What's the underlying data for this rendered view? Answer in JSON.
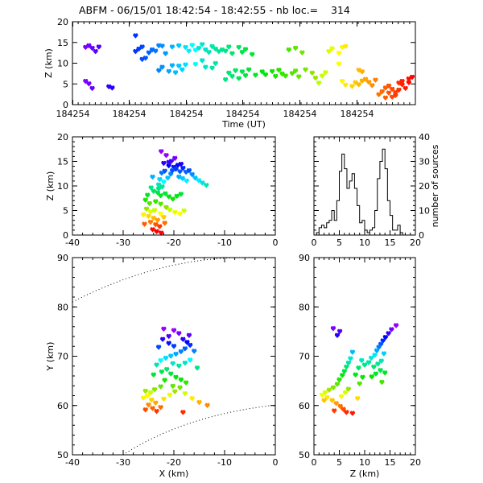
{
  "figure": {
    "title": "ABFM - 06/15/01 18:42:54 - 18:42:55 - nb loc.=    314"
  },
  "chart_data": [
    {
      "id": "time-height",
      "type": "scatter",
      "xlabel": "Time (UT)",
      "ylabel": "Z (km)",
      "xlim": [
        0,
        1
      ],
      "ylim": [
        0,
        20
      ],
      "xtick_labels": [
        "184254",
        "184254",
        "184254",
        "184254",
        "184254",
        "184254"
      ],
      "yticks": [
        0,
        5,
        10,
        15,
        20
      ],
      "color_by": "time (violet = early, red = late)",
      "points": [
        [
          0.02,
          13.8
        ],
        [
          0.03,
          14.2
        ],
        [
          0.04,
          13.6
        ],
        [
          0.06,
          13.9
        ],
        [
          0.05,
          12.8
        ],
        [
          0.02,
          5.6
        ],
        [
          0.03,
          5.0
        ],
        [
          0.04,
          3.9
        ],
        [
          0.09,
          4.3
        ],
        [
          0.1,
          4.0
        ],
        [
          0.17,
          16.6
        ],
        [
          0.17,
          12.8
        ],
        [
          0.18,
          13.4
        ],
        [
          0.19,
          13.9
        ],
        [
          0.21,
          12.5
        ],
        [
          0.22,
          13.2
        ],
        [
          0.23,
          12.9
        ],
        [
          0.24,
          14.2
        ],
        [
          0.19,
          10.9
        ],
        [
          0.2,
          11.2
        ],
        [
          0.25,
          14.1
        ],
        [
          0.26,
          12.3
        ],
        [
          0.24,
          8.2
        ],
        [
          0.25,
          9.0
        ],
        [
          0.27,
          8.0
        ],
        [
          0.28,
          9.4
        ],
        [
          0.29,
          7.7
        ],
        [
          0.3,
          9.3
        ],
        [
          0.31,
          8.4
        ],
        [
          0.32,
          9.6
        ],
        [
          0.28,
          13.9
        ],
        [
          0.3,
          14.2
        ],
        [
          0.32,
          13.8
        ],
        [
          0.33,
          12.9
        ],
        [
          0.34,
          14.3
        ],
        [
          0.35,
          13.1
        ],
        [
          0.36,
          13.6
        ],
        [
          0.37,
          14.5
        ],
        [
          0.38,
          13.2
        ],
        [
          0.39,
          12.6
        ],
        [
          0.4,
          14.0
        ],
        [
          0.41,
          13.4
        ],
        [
          0.42,
          12.8
        ],
        [
          0.43,
          13.2
        ],
        [
          0.44,
          12.9
        ],
        [
          0.45,
          13.9
        ],
        [
          0.46,
          12.3
        ],
        [
          0.35,
          9.7
        ],
        [
          0.37,
          10.6
        ],
        [
          0.38,
          9.0
        ],
        [
          0.4,
          8.8
        ],
        [
          0.41,
          9.9
        ],
        [
          0.44,
          6.0
        ],
        [
          0.45,
          7.6
        ],
        [
          0.46,
          6.8
        ],
        [
          0.47,
          8.2
        ],
        [
          0.48,
          6.3
        ],
        [
          0.49,
          7.9
        ],
        [
          0.5,
          7.0
        ],
        [
          0.51,
          8.4
        ],
        [
          0.48,
          13.8
        ],
        [
          0.49,
          12.6
        ],
        [
          0.5,
          13.3
        ],
        [
          0.52,
          12.1
        ],
        [
          0.53,
          7.1
        ],
        [
          0.55,
          7.9
        ],
        [
          0.56,
          7.2
        ],
        [
          0.58,
          8.0
        ],
        [
          0.59,
          6.8
        ],
        [
          0.6,
          8.3
        ],
        [
          0.61,
          7.4
        ],
        [
          0.62,
          6.9
        ],
        [
          0.64,
          7.5
        ],
        [
          0.65,
          8.1
        ],
        [
          0.66,
          6.7
        ],
        [
          0.63,
          13.2
        ],
        [
          0.65,
          13.6
        ],
        [
          0.67,
          12.5
        ],
        [
          0.68,
          8.4
        ],
        [
          0.7,
          7.6
        ],
        [
          0.71,
          6.4
        ],
        [
          0.72,
          5.2
        ],
        [
          0.73,
          6.9
        ],
        [
          0.74,
          7.7
        ],
        [
          0.75,
          12.8
        ],
        [
          0.76,
          13.5
        ],
        [
          0.78,
          12.4
        ],
        [
          0.79,
          13.8
        ],
        [
          0.8,
          14.0
        ],
        [
          0.78,
          9.8
        ],
        [
          0.79,
          5.6
        ],
        [
          0.8,
          4.7
        ],
        [
          0.82,
          4.4
        ],
        [
          0.83,
          5.3
        ],
        [
          0.84,
          4.8
        ],
        [
          0.85,
          5.7
        ],
        [
          0.86,
          6.1
        ],
        [
          0.87,
          5.4
        ],
        [
          0.88,
          4.6
        ],
        [
          0.89,
          5.9
        ],
        [
          0.84,
          8.3
        ],
        [
          0.85,
          7.9
        ],
        [
          0.9,
          2.4
        ],
        [
          0.91,
          3.1
        ],
        [
          0.92,
          1.6
        ],
        [
          0.93,
          2.8
        ],
        [
          0.94,
          3.7
        ],
        [
          0.95,
          2.2
        ],
        [
          0.96,
          5.2
        ],
        [
          0.97,
          4.8
        ],
        [
          0.93,
          4.5
        ],
        [
          0.98,
          3.9
        ],
        [
          0.99,
          5.3
        ],
        [
          1.0,
          6.6
        ],
        [
          0.99,
          6.2
        ],
        [
          0.97,
          5.6
        ],
        [
          0.94,
          1.8
        ],
        [
          0.95,
          2.9
        ],
        [
          0.96,
          3.5
        ],
        [
          0.92,
          4.0
        ]
      ]
    },
    {
      "id": "x-z",
      "type": "scatter",
      "xlabel": "",
      "ylabel": "Z (km)",
      "xlim": [
        -40,
        0
      ],
      "ylim": [
        0,
        20
      ],
      "xticks": [
        -40,
        -30,
        -20,
        -10,
        0
      ],
      "yticks": [
        0,
        5,
        10,
        15,
        20
      ],
      "points": [
        [
          -22.5,
          17.0
        ],
        [
          -21.5,
          16.2
        ],
        [
          -20.5,
          15.0
        ],
        [
          -22.0,
          14.6
        ],
        [
          -21.0,
          14.1
        ],
        [
          -20.0,
          13.8
        ],
        [
          -19.2,
          14.2
        ],
        [
          -21.8,
          13.0
        ],
        [
          -22.4,
          12.6
        ],
        [
          -20.6,
          12.4
        ],
        [
          -19.6,
          13.4
        ],
        [
          -18.8,
          12.9
        ],
        [
          -18.2,
          13.6
        ],
        [
          -17.6,
          12.8
        ],
        [
          -17.0,
          13.1
        ],
        [
          -16.4,
          12.3
        ],
        [
          -15.8,
          11.6
        ],
        [
          -15.1,
          11.1
        ],
        [
          -14.4,
          10.6
        ],
        [
          -13.6,
          10.1
        ],
        [
          -21.0,
          14.8
        ],
        [
          -20.3,
          13.1
        ],
        [
          -19.0,
          11.8
        ],
        [
          -18.3,
          11.5
        ],
        [
          -17.5,
          11.0
        ],
        [
          -22.8,
          11.3
        ],
        [
          -22.0,
          10.8
        ],
        [
          -23.0,
          10.2
        ],
        [
          -24.5,
          9.6
        ],
        [
          -24.0,
          8.9
        ],
        [
          -23.2,
          8.6
        ],
        [
          -22.6,
          8.0
        ],
        [
          -21.7,
          8.4
        ],
        [
          -21.0,
          7.8
        ],
        [
          -20.2,
          7.3
        ],
        [
          -19.4,
          7.9
        ],
        [
          -18.6,
          8.3
        ],
        [
          -25.2,
          8.1
        ],
        [
          -25.6,
          7.1
        ],
        [
          -24.8,
          6.4
        ],
        [
          -23.6,
          6.8
        ],
        [
          -22.6,
          6.3
        ],
        [
          -21.5,
          5.6
        ],
        [
          -20.8,
          5.1
        ],
        [
          -19.8,
          4.6
        ],
        [
          -18.8,
          4.3
        ],
        [
          -18.0,
          4.9
        ],
        [
          -25.4,
          5.3
        ],
        [
          -24.6,
          4.7
        ],
        [
          -23.8,
          5.0
        ],
        [
          -22.6,
          4.3
        ],
        [
          -25.0,
          3.8
        ],
        [
          -24.0,
          3.4
        ],
        [
          -23.2,
          3.0
        ],
        [
          -24.6,
          2.6
        ],
        [
          -23.6,
          2.1
        ],
        [
          -22.8,
          1.7
        ],
        [
          -24.2,
          1.1
        ],
        [
          -23.4,
          0.7
        ],
        [
          -22.5,
          0.4
        ],
        [
          -25.8,
          2.2
        ],
        [
          -26.0,
          4.1
        ],
        [
          -22.0,
          3.6
        ],
        [
          -21.8,
          2.4
        ],
        [
          -23.0,
          9.4
        ],
        [
          -22.3,
          9.8
        ],
        [
          -24.2,
          11.8
        ],
        [
          -21.2,
          11.6
        ],
        [
          -19.8,
          15.6
        ],
        [
          -18.6,
          14.4
        ]
      ]
    },
    {
      "id": "z-histogram",
      "type": "bar",
      "xlabel": "",
      "ylabel": "number of sources",
      "xlim": [
        0,
        20
      ],
      "ylim": [
        0,
        40
      ],
      "xticks": [
        0,
        5,
        10,
        15,
        20
      ],
      "yticks": [
        0,
        10,
        20,
        30,
        40
      ],
      "bin_width": 0.5,
      "bin_start": 0,
      "values": [
        0,
        1,
        3,
        4,
        3,
        5,
        6,
        10,
        6,
        14,
        26,
        33,
        27,
        19,
        22,
        25,
        19,
        12,
        5,
        6,
        2,
        1,
        2,
        3,
        10,
        23,
        30,
        35,
        27,
        14,
        8,
        2,
        2,
        4,
        1,
        0,
        0,
        0,
        0,
        0
      ]
    },
    {
      "id": "x-y",
      "type": "scatter",
      "xlabel": "X (km)",
      "ylabel": "Y (km)",
      "xlim": [
        -40,
        0
      ],
      "ylim": [
        50,
        90
      ],
      "xticks": [
        -40,
        -30,
        -20,
        -10,
        0
      ],
      "yticks": [
        50,
        60,
        70,
        80,
        90
      ],
      "reference_curves": "dotted range circles",
      "points": [
        [
          -22.0,
          75.5
        ],
        [
          -20.0,
          75.2
        ],
        [
          -19.0,
          74.6
        ],
        [
          -21.0,
          74.0
        ],
        [
          -18.2,
          73.4
        ],
        [
          -17.4,
          72.8
        ],
        [
          -16.8,
          72.2
        ],
        [
          -17.8,
          71.5
        ],
        [
          -18.6,
          70.9
        ],
        [
          -19.6,
          70.4
        ],
        [
          -20.6,
          70.0
        ],
        [
          -21.6,
          69.6
        ],
        [
          -22.6,
          69.1
        ],
        [
          -20.2,
          68.5
        ],
        [
          -19.0,
          68.0
        ],
        [
          -17.8,
          68.6
        ],
        [
          -16.8,
          69.2
        ],
        [
          -21.4,
          67.3
        ],
        [
          -20.6,
          66.4
        ],
        [
          -19.6,
          65.7
        ],
        [
          -18.6,
          65.2
        ],
        [
          -17.6,
          64.6
        ],
        [
          -22.4,
          66.8
        ],
        [
          -21.8,
          65.1
        ],
        [
          -22.6,
          63.8
        ],
        [
          -23.8,
          63.2
        ],
        [
          -24.6,
          62.6
        ],
        [
          -25.2,
          61.9
        ],
        [
          -24.4,
          61.1
        ],
        [
          -23.6,
          60.5
        ],
        [
          -25.0,
          60.1
        ],
        [
          -24.2,
          59.4
        ],
        [
          -23.4,
          58.8
        ],
        [
          -22.6,
          59.6
        ],
        [
          -22.0,
          61.3
        ],
        [
          -20.8,
          62.1
        ],
        [
          -19.8,
          62.8
        ],
        [
          -18.8,
          63.6
        ],
        [
          -17.8,
          62.4
        ],
        [
          -16.4,
          61.4
        ],
        [
          -15.0,
          60.6
        ],
        [
          -13.4,
          60.0
        ],
        [
          -18.2,
          58.6
        ],
        [
          -20.2,
          63.9
        ],
        [
          -21.0,
          72.6
        ],
        [
          -22.2,
          73.4
        ],
        [
          -23.0,
          71.8
        ],
        [
          -20.0,
          72.0
        ],
        [
          -17.0,
          74.2
        ],
        [
          -16.0,
          71.0
        ],
        [
          -15.4,
          67.6
        ],
        [
          -23.4,
          68.2
        ],
        [
          -24.0,
          66.2
        ],
        [
          -25.6,
          62.9
        ],
        [
          -26.0,
          61.5
        ],
        [
          -25.6,
          59.1
        ]
      ]
    },
    {
      "id": "z-y",
      "type": "scatter",
      "xlabel": "Z (km)",
      "ylabel": "",
      "xlim": [
        0,
        20
      ],
      "ylim": [
        50,
        90
      ],
      "xticks": [
        0,
        5,
        10,
        15,
        20
      ],
      "yticks": [
        50,
        60,
        70,
        80,
        90
      ],
      "points": [
        [
          3.8,
          75.6
        ],
        [
          5.1,
          75.0
        ],
        [
          4.6,
          74.2
        ],
        [
          16.2,
          76.2
        ],
        [
          15.3,
          75.4
        ],
        [
          14.7,
          74.6
        ],
        [
          14.1,
          73.8
        ],
        [
          13.6,
          73.1
        ],
        [
          13.2,
          72.4
        ],
        [
          12.8,
          71.8
        ],
        [
          12.4,
          71.1
        ],
        [
          13.8,
          70.5
        ],
        [
          12.0,
          70.2
        ],
        [
          11.3,
          69.6
        ],
        [
          13.3,
          69.0
        ],
        [
          12.6,
          68.4
        ],
        [
          11.8,
          67.8
        ],
        [
          13.1,
          67.1
        ],
        [
          12.2,
          66.4
        ],
        [
          11.4,
          65.8
        ],
        [
          10.8,
          68.7
        ],
        [
          10.0,
          68.2
        ],
        [
          9.4,
          69.1
        ],
        [
          8.8,
          67.6
        ],
        [
          7.6,
          70.8
        ],
        [
          7.2,
          69.5
        ],
        [
          6.8,
          68.6
        ],
        [
          6.4,
          67.8
        ],
        [
          6.0,
          66.9
        ],
        [
          5.6,
          66.1
        ],
        [
          5.0,
          65.2
        ],
        [
          4.6,
          64.3
        ],
        [
          3.8,
          63.6
        ],
        [
          3.0,
          63.1
        ],
        [
          2.2,
          62.6
        ],
        [
          1.6,
          62.1
        ],
        [
          2.6,
          61.6
        ],
        [
          3.6,
          61.0
        ],
        [
          4.4,
          60.4
        ],
        [
          5.2,
          59.8
        ],
        [
          5.8,
          59.2
        ],
        [
          6.4,
          58.6
        ],
        [
          4.0,
          58.9
        ],
        [
          5.4,
          61.8
        ],
        [
          6.2,
          62.6
        ],
        [
          6.8,
          63.3
        ],
        [
          7.6,
          58.4
        ],
        [
          8.2,
          66.2
        ],
        [
          9.0,
          64.4
        ],
        [
          9.6,
          65.7
        ],
        [
          13.4,
          64.7
        ],
        [
          14.0,
          66.6
        ],
        [
          8.6,
          61.4
        ],
        [
          2.0,
          61.0
        ]
      ]
    }
  ]
}
